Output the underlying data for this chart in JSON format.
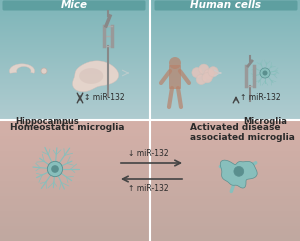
{
  "top_left_label": "Mice",
  "top_right_label": "Human cells",
  "bottom_left_label": "Homeostatic microglia",
  "bottom_right_label": "Activated disease\nassociated microglia",
  "hippocampus_label": "Hippocampus",
  "microglia_label": "Microglia",
  "mir132_updown": "↕ miR-132",
  "mir132_up_top": "↑ miR-132",
  "mir132_down_bot": "↓ miR-132",
  "mir132_up_bot": "↑ miR-132",
  "bg_top_color": "#7db5b8",
  "bg_top_bottom": "#c0d8d8",
  "bg_bottom_top": "#c8a8a0",
  "bg_bottom_bottom": "#d4b0a8",
  "header_color": "#5e9fa0",
  "white": "#ffffff",
  "dark": "#2a2a2a",
  "arrow_color": "#444444",
  "brain_light": "#e8d5cc",
  "brain_medium": "#d4bfb8",
  "brain_dark": "#c8b0a8",
  "cell_color": "#e0c4bc",
  "human_color": "#b8826a",
  "microglia_color": "#88bfbc",
  "microglia_dark": "#5a9090",
  "microglia_nucleus": "#5a8f8e",
  "fig_width": 3.0,
  "fig_height": 2.41,
  "dpi": 100
}
